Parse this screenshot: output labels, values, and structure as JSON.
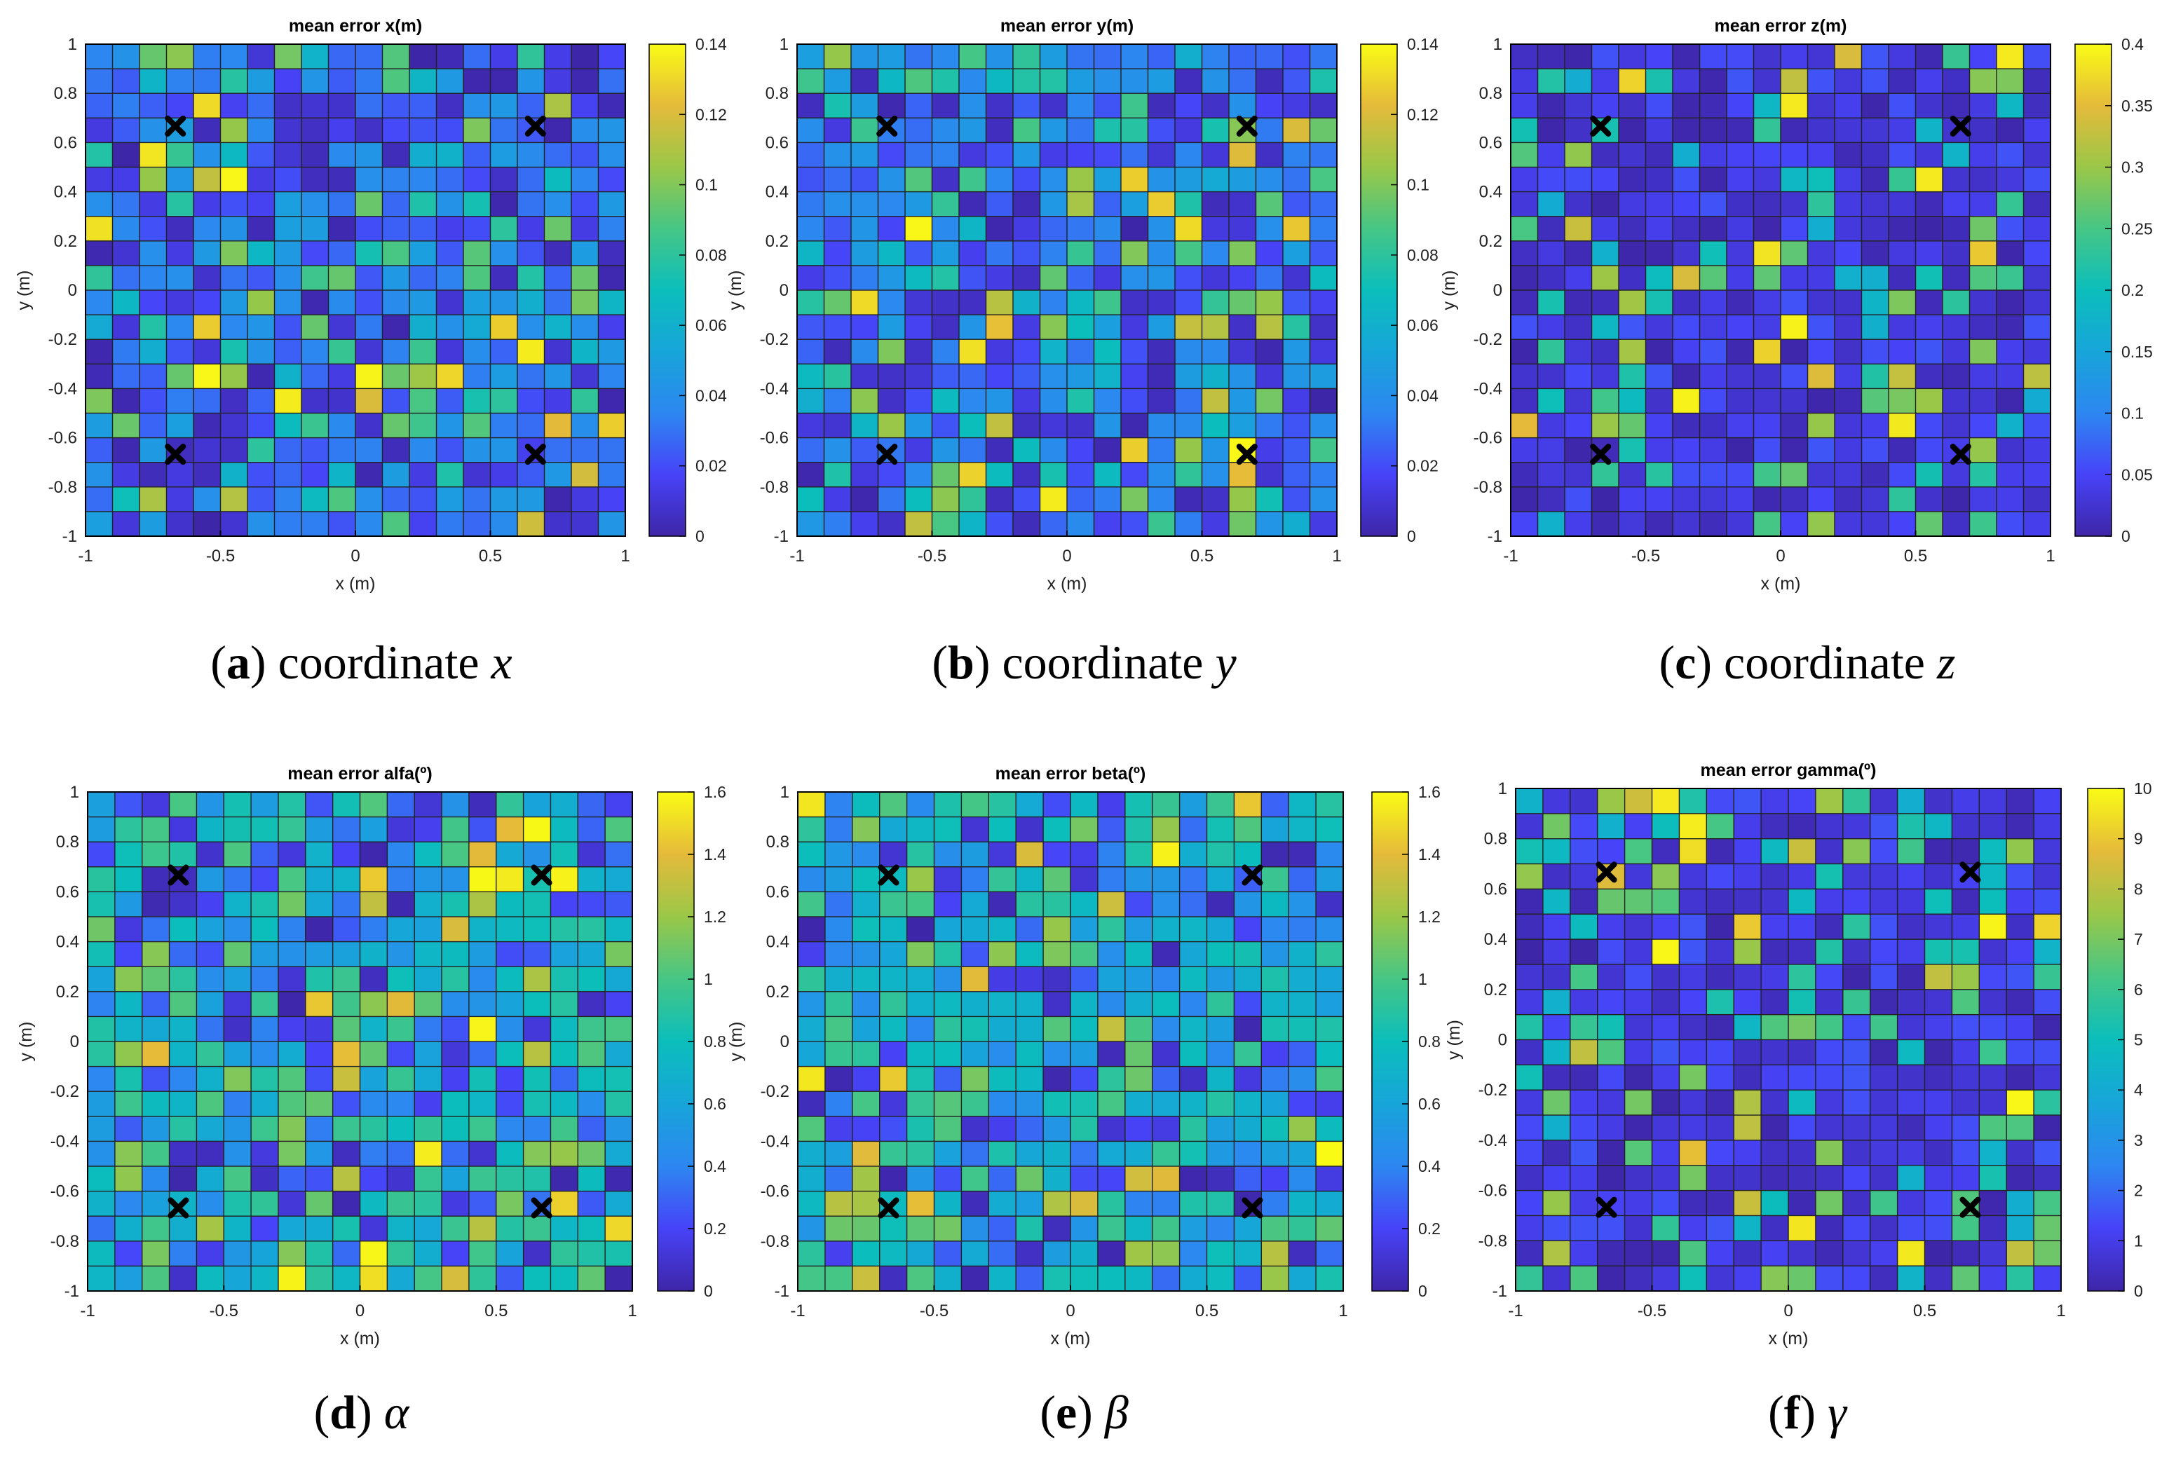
{
  "colormap": [
    "#3e26a8",
    "#4743f8",
    "#2d87f1",
    "#17a5d9",
    "#0bbebb",
    "#46c685",
    "#9ac748",
    "#e5ba3a",
    "#f9fb15"
  ],
  "colors": {
    "grid_line": "#222222",
    "marker": "#000000",
    "background": "#ffffff"
  },
  "captions": [
    {
      "letter": "a",
      "text": "coordinate",
      "symbol": "x"
    },
    {
      "letter": "b",
      "text": "coordinate",
      "symbol": "y"
    },
    {
      "letter": "c",
      "text": "coordinate",
      "symbol": "z"
    },
    {
      "letter": "d",
      "text": "",
      "symbol": "α"
    },
    {
      "letter": "e",
      "text": "",
      "symbol": "β"
    },
    {
      "letter": "f",
      "text": "",
      "symbol": "γ"
    }
  ],
  "chart_data": [
    {
      "type": "heatmap",
      "title": "mean error x(m)",
      "xlabel": "x (m)",
      "ylabel": "y (m)",
      "xlim": [
        -1,
        1
      ],
      "ylim": [
        -1,
        1
      ],
      "xticks": [
        "-1",
        "-0.5",
        "0",
        "0.5",
        "1"
      ],
      "yticks": [
        "1",
        "0.8",
        "0.6",
        "0.4",
        "0.2",
        "0",
        "-0.2",
        "-0.4",
        "-0.6",
        "-0.8",
        "-1"
      ],
      "color_range": [
        0,
        0.14
      ],
      "colorbar_ticks": [
        "0.14",
        "0.12",
        "0.1",
        "0.08",
        "0.06",
        "0.04",
        "0.02",
        "0"
      ],
      "grid_size": 20,
      "markers": [
        [
          -0.667,
          0.667
        ],
        [
          0.667,
          0.667
        ],
        [
          -0.667,
          -0.667
        ],
        [
          0.667,
          -0.667
        ]
      ],
      "z": []
    },
    {
      "type": "heatmap",
      "title": "mean error y(m)",
      "xlabel": "x (m)",
      "ylabel": "y (m)",
      "xlim": [
        -1,
        1
      ],
      "ylim": [
        -1,
        1
      ],
      "xticks": [
        "-1",
        "-0.5",
        "0",
        "0.5",
        "1"
      ],
      "yticks": [
        "1",
        "0.8",
        "0.6",
        "0.4",
        "0.2",
        "0",
        "-0.2",
        "-0.4",
        "-0.6",
        "-0.8",
        "-1"
      ],
      "color_range": [
        0,
        0.14
      ],
      "colorbar_ticks": [
        "0.14",
        "0.12",
        "0.1",
        "0.08",
        "0.06",
        "0.04",
        "0.02",
        "0"
      ],
      "grid_size": 20,
      "markers": [
        [
          -0.667,
          0.667
        ],
        [
          0.667,
          0.667
        ],
        [
          -0.667,
          -0.667
        ],
        [
          0.667,
          -0.667
        ]
      ],
      "z": []
    },
    {
      "type": "heatmap",
      "title": "mean error z(m)",
      "xlabel": "x (m)",
      "ylabel": "y (m)",
      "xlim": [
        -1,
        1
      ],
      "ylim": [
        -1,
        1
      ],
      "xticks": [
        "-1",
        "-0.5",
        "0",
        "0.5",
        "1"
      ],
      "yticks": [
        "1",
        "0.8",
        "0.6",
        "0.4",
        "0.2",
        "0",
        "-0.2",
        "-0.4",
        "-0.6",
        "-0.8",
        "-1"
      ],
      "color_range": [
        0,
        0.4
      ],
      "colorbar_ticks": [
        "0.4",
        "0.35",
        "0.3",
        "0.25",
        "0.2",
        "0.15",
        "0.1",
        "0.05",
        "0"
      ],
      "grid_size": 20,
      "markers": [
        [
          -0.667,
          0.667
        ],
        [
          0.667,
          0.667
        ],
        [
          -0.667,
          -0.667
        ],
        [
          0.667,
          -0.667
        ]
      ],
      "z": []
    },
    {
      "type": "heatmap",
      "title": "mean error alfa(º)",
      "xlabel": "x (m)",
      "ylabel": "y (m)",
      "xlim": [
        -1,
        1
      ],
      "ylim": [
        -1,
        1
      ],
      "xticks": [
        "-1",
        "-0.5",
        "0",
        "0.5",
        "1"
      ],
      "yticks": [
        "1",
        "0.8",
        "0.6",
        "0.4",
        "0.2",
        "0",
        "-0.2",
        "-0.4",
        "-0.6",
        "-0.8",
        "-1"
      ],
      "color_range": [
        0,
        1.6
      ],
      "colorbar_ticks": [
        "1.6",
        "1.4",
        "1.2",
        "1",
        "0.8",
        "0.6",
        "0.4",
        "0.2",
        "0"
      ],
      "grid_size": 20,
      "markers": [
        [
          -0.667,
          0.667
        ],
        [
          0.667,
          0.667
        ],
        [
          -0.667,
          -0.667
        ],
        [
          0.667,
          -0.667
        ]
      ],
      "z": []
    },
    {
      "type": "heatmap",
      "title": "mean error beta(º)",
      "xlabel": "x (m)",
      "ylabel": "y (m)",
      "xlim": [
        -1,
        1
      ],
      "ylim": [
        -1,
        1
      ],
      "xticks": [
        "-1",
        "-0.5",
        "0",
        "0.5",
        "1"
      ],
      "yticks": [
        "1",
        "0.8",
        "0.6",
        "0.4",
        "0.2",
        "0",
        "-0.2",
        "-0.4",
        "-0.6",
        "-0.8",
        "-1"
      ],
      "color_range": [
        0,
        1.6
      ],
      "colorbar_ticks": [
        "1.6",
        "1.4",
        "1.2",
        "1",
        "0.8",
        "0.6",
        "0.4",
        "0.2",
        "0"
      ],
      "grid_size": 20,
      "markers": [
        [
          -0.667,
          0.667
        ],
        [
          0.667,
          0.667
        ],
        [
          -0.667,
          -0.667
        ],
        [
          0.667,
          -0.667
        ]
      ],
      "z": []
    },
    {
      "type": "heatmap",
      "title": "mean error gamma(º)",
      "xlabel": "x (m)",
      "ylabel": "y (m)",
      "xlim": [
        -1,
        1
      ],
      "ylim": [
        -1,
        1
      ],
      "xticks": [
        "-1",
        "-0.5",
        "0",
        "0.5",
        "1"
      ],
      "yticks": [
        "1",
        "0.8",
        "0.6",
        "0.4",
        "0.2",
        "0",
        "-0.2",
        "-0.4",
        "-0.6",
        "-0.8",
        "-1"
      ],
      "color_range": [
        0,
        10
      ],
      "colorbar_ticks": [
        "10",
        "9",
        "8",
        "7",
        "6",
        "5",
        "4",
        "3",
        "2",
        "1",
        "0"
      ],
      "grid_size": 20,
      "markers": [
        [
          -0.667,
          0.667
        ],
        [
          0.667,
          0.667
        ],
        [
          -0.667,
          -0.667
        ],
        [
          0.667,
          -0.667
        ]
      ],
      "z": []
    }
  ]
}
